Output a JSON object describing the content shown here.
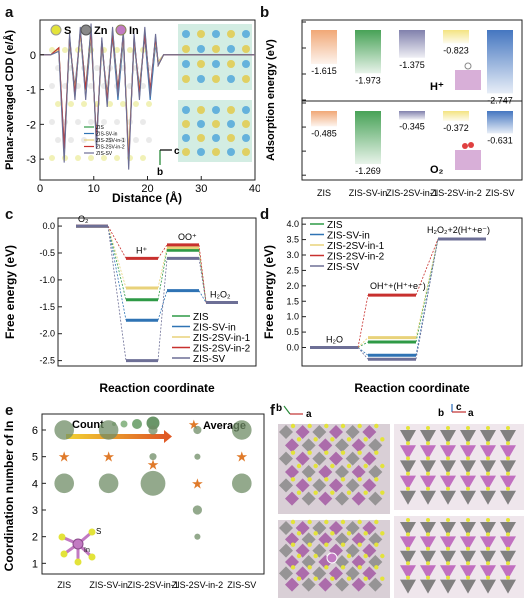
{
  "panel_labels": {
    "a": "a",
    "b": "b",
    "c": "c",
    "d": "d",
    "e": "e",
    "f": "f"
  },
  "colors": {
    "ZIS": "#2e9a46",
    "ZIS-SV-in": "#2f73b4",
    "ZIS-2SV-in-1": "#e8d27a",
    "ZIS-2SV-in-2": "#c8302e",
    "ZIS-SV": "#6d6f96",
    "accent": "#e07a2a"
  },
  "chart_data": [
    {
      "id": "a",
      "type": "line",
      "xlabel": "Distance (Å)",
      "ylabel": "Planar-averaged CDD (e/Å)",
      "xlim": [
        0,
        40
      ],
      "ylim": [
        -3.6,
        1.0
      ],
      "xticks": [
        0,
        10,
        20,
        30,
        40
      ],
      "yticks": [
        -3,
        -2,
        -1,
        0
      ],
      "legend_atoms": [
        "S",
        "Zn",
        "In"
      ],
      "legend": [
        "ZIS",
        "ZIS-SV-in",
        "ZIS-2SV-in-1",
        "ZIS-2SV-in-2",
        "ZIS-SV"
      ],
      "series": [
        {
          "name": "ZIS",
          "x": [
            0,
            2,
            3.5,
            4.5,
            5.5,
            6.5,
            7.5,
            8.5,
            9.5,
            10.5,
            11.5,
            12.5,
            13.5,
            14.5,
            15.5,
            16.5,
            17.5,
            18.5,
            19.5,
            20.5,
            21.5,
            22,
            23,
            25,
            40
          ],
          "y": [
            0,
            0,
            0.2,
            -2.9,
            0.5,
            -1.2,
            0.7,
            -1.0,
            0.8,
            -2.6,
            0.4,
            -1.4,
            0.7,
            -1.0,
            0.6,
            -3.0,
            0.5,
            -1.2,
            0.7,
            -1.1,
            0.5,
            -0.3,
            0,
            0,
            0
          ]
        },
        {
          "name": "ZIS-SV-in",
          "x": [
            0,
            2,
            3.5,
            4.5,
            5.5,
            6.5,
            7.5,
            8.5,
            9.5,
            10.5,
            11.5,
            12.5,
            13.5,
            14.5,
            15.5,
            16.5,
            17.5,
            18.5,
            19.5,
            20.5,
            21.5,
            22,
            23,
            25,
            40
          ],
          "y": [
            0,
            0,
            0.1,
            -2.6,
            0.3,
            -0.9,
            0.6,
            -1.2,
            0.5,
            -2.4,
            0.2,
            -1.1,
            0.5,
            -1.3,
            0.4,
            -2.9,
            0.3,
            -0.9,
            0.5,
            -1.3,
            0.3,
            -0.2,
            0,
            0,
            0
          ]
        },
        {
          "name": "ZIS-2SV-in-1",
          "x": [
            0,
            2,
            3.5,
            4.5,
            5.5,
            6.5,
            7.5,
            8.5,
            9.5,
            10.5,
            11.5,
            12.5,
            13.5,
            14.5,
            15.5,
            16.5,
            17.5,
            18.5,
            19.5,
            20.5,
            21.5,
            22,
            23,
            25,
            40
          ],
          "y": [
            0,
            0,
            0.15,
            -2.8,
            0.4,
            -1.0,
            0.6,
            -1.1,
            0.6,
            -2.5,
            0.3,
            -1.2,
            0.6,
            -1.1,
            0.5,
            -2.8,
            0.4,
            -1.0,
            0.6,
            -1.0,
            0.4,
            -0.2,
            0,
            0,
            0
          ]
        },
        {
          "name": "ZIS-2SV-in-2",
          "x": [
            0,
            2,
            3.5,
            4.5,
            5.5,
            6.5,
            7.5,
            8.5,
            9.5,
            10.5,
            11.5,
            12.5,
            13.5,
            14.5,
            15.5,
            16.5,
            17.5,
            18.5,
            19.5,
            20.5,
            21.5,
            22,
            23,
            25,
            40
          ],
          "y": [
            0,
            0,
            0.2,
            -2.7,
            0.5,
            -1.1,
            0.7,
            -1.0,
            0.7,
            -2.5,
            0.4,
            -1.3,
            0.6,
            -1.0,
            0.6,
            -3.1,
            0.5,
            -1.1,
            0.6,
            -1.0,
            0.5,
            -0.3,
            0,
            0,
            0
          ]
        },
        {
          "name": "ZIS-SV",
          "x": [
            0,
            2,
            3.5,
            4.5,
            5.5,
            6.5,
            7.5,
            8.5,
            9.5,
            10.5,
            11.5,
            12.5,
            13.5,
            14.5,
            15.5,
            16.5,
            17.5,
            18.5,
            19.5,
            20.5,
            21.5,
            22,
            23,
            25,
            40
          ],
          "y": [
            0,
            0,
            0.1,
            -3.1,
            0.6,
            -1.3,
            0.8,
            -1.3,
            0.9,
            -2.7,
            0.5,
            -1.5,
            0.8,
            -1.2,
            0.7,
            -3.3,
            0.6,
            -1.3,
            0.8,
            -1.2,
            0.6,
            -0.3,
            0,
            0,
            0
          ]
        }
      ]
    },
    {
      "id": "b",
      "type": "bar",
      "ylabel": "Adsorption energy (eV)",
      "categories": [
        "ZIS",
        "ZIS-SV-in",
        "ZIS-2SV-in-1",
        "ZIS-2SV-in-2",
        "ZIS-SV"
      ],
      "groups": [
        {
          "adsorbate": "H⁺",
          "values": [
            -1.615,
            -1.973,
            -1.375,
            -0.823,
            -2.747
          ],
          "labels": [
            "-1.615",
            "-1.973",
            "-1.375",
            "-0.823",
            "-2.747"
          ],
          "ylim": [
            -3.0,
            0.0
          ],
          "yticks": [
            -3,
            -2,
            -1,
            0
          ]
        },
        {
          "adsorbate": "O₂",
          "values": [
            -0.485,
            -1.269,
            -0.345,
            -0.372,
            -0.631
          ],
          "labels": [
            "-0.485",
            "-1.269",
            "-0.345",
            "-0.372",
            "-0.631"
          ],
          "ylim": [
            -1.6,
            0.0
          ],
          "yticks": [
            -1.5,
            -1.0,
            -0.5,
            0.0
          ]
        }
      ],
      "bar_colors": [
        "#f0a36f",
        "#3e9d4e",
        "#7a7aa8",
        "#f3e27a",
        "#3b6fbd"
      ]
    },
    {
      "id": "c",
      "type": "line",
      "xlabel": "Reaction coordinate",
      "ylabel": "Free energy (eV)",
      "ylim": [
        -2.6,
        0.15
      ],
      "yticks": [
        0.0,
        -0.5,
        -1.0,
        -1.5,
        -2.0,
        -2.5
      ],
      "ytick_labels": [
        "0.0",
        "-0.5",
        "-1.0",
        "-1.5",
        "-2.0",
        "-2.5"
      ],
      "states": [
        "O₂",
        "H⁺",
        "OO⁺",
        "H₂O₂"
      ],
      "legend": [
        "ZIS",
        "ZIS-SV-in",
        "ZIS-2SV-in-1",
        "ZIS-2SV-in-2",
        "ZIS-SV"
      ],
      "series": [
        {
          "name": "ZIS",
          "values": [
            0,
            -1.37,
            -0.45,
            -1.42
          ]
        },
        {
          "name": "ZIS-SV-in",
          "values": [
            0,
            -1.75,
            -1.2,
            -1.42
          ]
        },
        {
          "name": "ZIS-2SV-in-1",
          "values": [
            0,
            -1.15,
            -0.4,
            -1.42
          ]
        },
        {
          "name": "ZIS-2SV-in-2",
          "values": [
            0,
            -0.6,
            -0.35,
            -1.42
          ]
        },
        {
          "name": "ZIS-SV",
          "values": [
            0,
            -2.5,
            -0.6,
            -1.42
          ]
        }
      ]
    },
    {
      "id": "d",
      "type": "line",
      "xlabel": "Reaction coordinate",
      "ylabel": "Free energy (eV)",
      "ylim": [
        -0.6,
        4.2
      ],
      "yticks": [
        0.0,
        0.5,
        1.0,
        1.5,
        2.0,
        2.5,
        3.0,
        3.5,
        4.0
      ],
      "ytick_labels": [
        "0.0",
        "0.5",
        "1.0",
        "1.5",
        "2.0",
        "2.5",
        "3.0",
        "3.5",
        "4.0"
      ],
      "states": [
        "H₂O",
        "OH⁺+(H⁺+e⁻)",
        "H₂O₂+2(H⁺+e⁻)"
      ],
      "legend": [
        "ZIS",
        "ZIS-SV-in",
        "ZIS-2SV-in-1",
        "ZIS-2SV-in-2",
        "ZIS-SV"
      ],
      "series": [
        {
          "name": "ZIS",
          "values": [
            0,
            0.18,
            3.52
          ]
        },
        {
          "name": "ZIS-SV-in",
          "values": [
            0,
            -0.25,
            3.52
          ]
        },
        {
          "name": "ZIS-2SV-in-1",
          "values": [
            0,
            0.32,
            3.52
          ]
        },
        {
          "name": "ZIS-2SV-in-2",
          "values": [
            0,
            1.7,
            3.52
          ]
        },
        {
          "name": "ZIS-SV",
          "values": [
            0,
            -0.38,
            3.52
          ]
        }
      ]
    },
    {
      "id": "e",
      "type": "scatter",
      "ylabel": "Coordination number of In",
      "categories": [
        "ZIS",
        "ZIS-SV-in",
        "ZIS-2SV-in-1",
        "ZIS-2SV-in-2",
        "ZIS-SV"
      ],
      "count_legend": "Count",
      "average_legend": "Average",
      "ylim": [
        0.6,
        6.6
      ],
      "yticks": [
        1,
        2,
        3,
        4,
        5,
        6
      ],
      "bubbles": [
        {
          "cat": 0,
          "cn": 6,
          "size": 3
        },
        {
          "cat": 0,
          "cn": 4,
          "size": 3
        },
        {
          "cat": 1,
          "cn": 6,
          "size": 3
        },
        {
          "cat": 1,
          "cn": 4,
          "size": 3
        },
        {
          "cat": 2,
          "cn": 6,
          "size": 1
        },
        {
          "cat": 2,
          "cn": 5,
          "size": 0.6
        },
        {
          "cat": 2,
          "cn": 4,
          "size": 4
        },
        {
          "cat": 3,
          "cn": 6,
          "size": 0.8
        },
        {
          "cat": 3,
          "cn": 5,
          "size": 0.4
        },
        {
          "cat": 3,
          "cn": 3,
          "size": 1
        },
        {
          "cat": 3,
          "cn": 2,
          "size": 0.4
        },
        {
          "cat": 4,
          "cn": 6,
          "size": 3
        },
        {
          "cat": 4,
          "cn": 4,
          "size": 3
        }
      ],
      "averages": [
        5,
        5,
        4.7,
        4,
        5
      ]
    }
  ],
  "panel_a_inset": {
    "axis_c": "c",
    "axis_b": "b"
  },
  "panel_b_labels": {
    "h_ads": "H⁺",
    "o2_ads": "O₂"
  },
  "panel_e_inset": {
    "atom_s": "S",
    "atom_in": "In"
  },
  "panel_f": {
    "left_axes": {
      "b": "b",
      "a": "a"
    },
    "right_axes": {
      "c": "c",
      "b": "b",
      "a": "a"
    }
  }
}
